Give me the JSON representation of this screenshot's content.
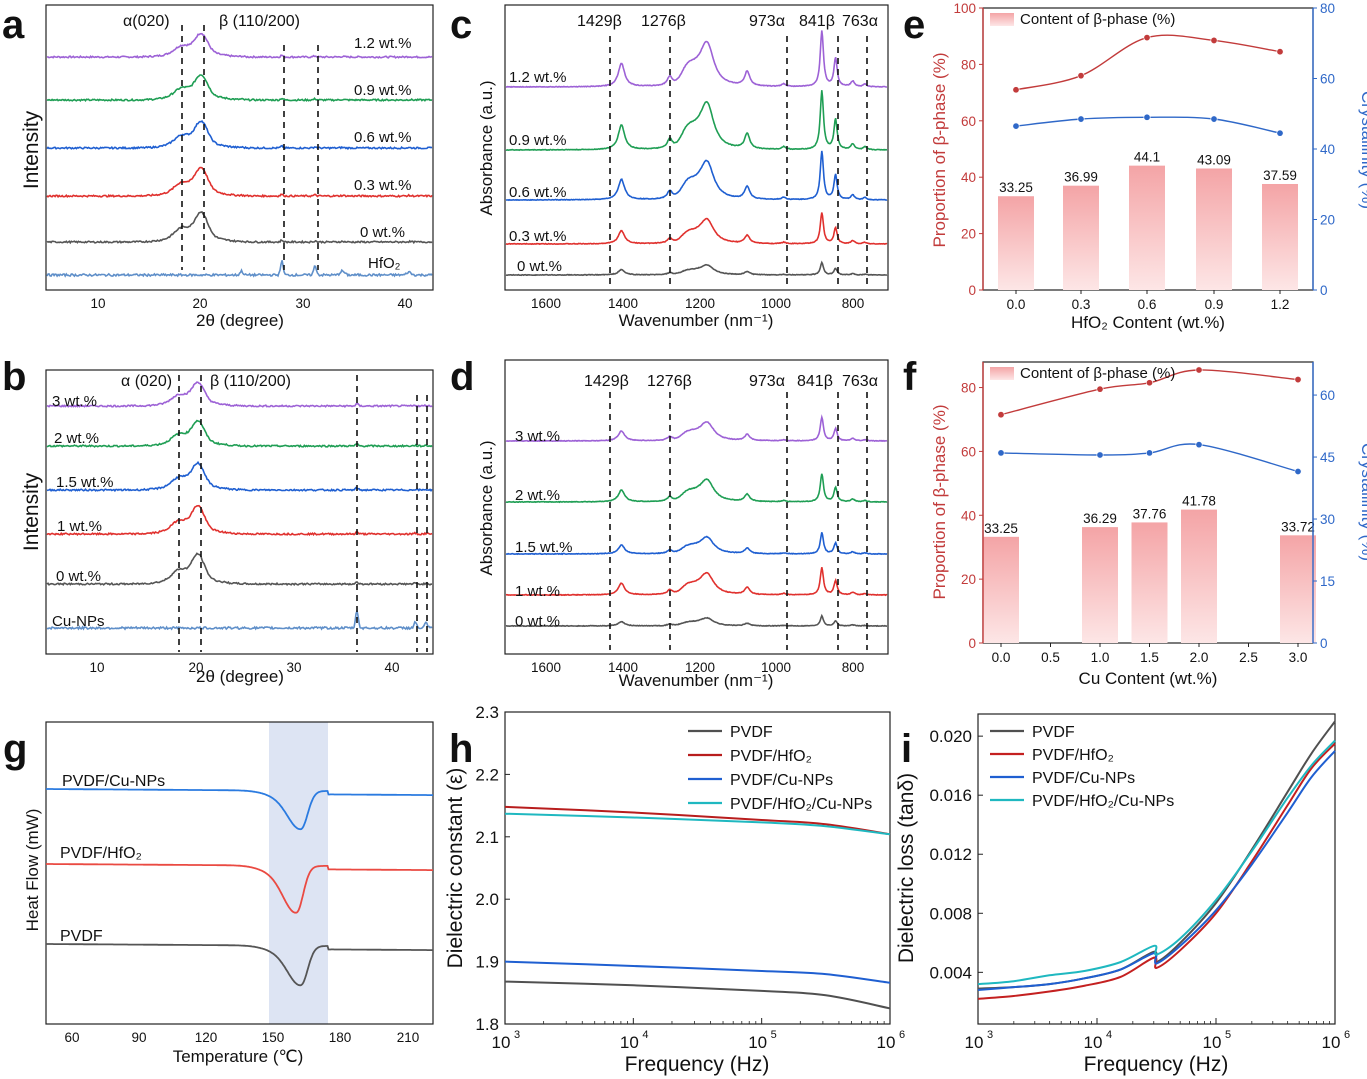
{
  "panels": {
    "a": {
      "label": "a",
      "xlabel": "2θ (degree)",
      "ylabel": "Intensity",
      "xticks": [
        "10",
        "20",
        "30",
        "40"
      ],
      "peaks": {
        "alpha": "α(020)",
        "beta": "β (110/200)"
      },
      "traces": [
        {
          "name": "1.2 wt.%",
          "color": "#9d62d6"
        },
        {
          "name": "0.9 wt.%",
          "color": "#1f9e54"
        },
        {
          "name": "0.6 wt.%",
          "color": "#1f5fd1"
        },
        {
          "name": "0.3 wt.%",
          "color": "#e0312e"
        },
        {
          "name": "0 wt.%",
          "color": "#555555"
        },
        {
          "name": "HfO₂",
          "color": "#5f8fc9"
        }
      ]
    },
    "b": {
      "label": "b",
      "xlabel": "2θ (degree)",
      "ylabel": "Intensity",
      "xticks": [
        "10",
        "20",
        "30",
        "40"
      ],
      "peaks": {
        "alpha": "α (020)",
        "beta": "β (110/200)"
      },
      "traces": [
        {
          "name": "3 wt.%",
          "color": "#9d62d6"
        },
        {
          "name": "2 wt.%",
          "color": "#1f9e54"
        },
        {
          "name": "1.5 wt.%",
          "color": "#1f5fd1"
        },
        {
          "name": "1 wt.%",
          "color": "#e0312e"
        },
        {
          "name": "0 wt.%",
          "color": "#555555"
        },
        {
          "name": "Cu-NPs",
          "color": "#5f8fc9"
        }
      ]
    },
    "c": {
      "label": "c",
      "xlabel": "Wavenumber (nm⁻¹)",
      "ylabel": "Absorbance (a.u.)",
      "xticks": [
        "1600",
        "1400",
        "1200",
        "1000",
        "800"
      ],
      "bands": [
        "1429β",
        "1276β",
        "973α",
        "841β",
        "763α"
      ],
      "traces": [
        {
          "name": "1.2 wt.%",
          "color": "#9d62d6"
        },
        {
          "name": "0.9 wt.%",
          "color": "#1f9e54"
        },
        {
          "name": "0.6 wt.%",
          "color": "#1f5fd1"
        },
        {
          "name": "0.3 wt.%",
          "color": "#e0312e"
        },
        {
          "name": "0 wt.%",
          "color": "#555555"
        }
      ]
    },
    "d": {
      "label": "d",
      "xlabel": "Wavenumber (nm⁻¹)",
      "ylabel": "Absorbance (a.u.)",
      "xticks": [
        "1600",
        "1400",
        "1200",
        "1000",
        "800"
      ],
      "bands": [
        "1429β",
        "1276β",
        "973α",
        "841β",
        "763α"
      ],
      "traces": [
        {
          "name": "3 wt.%",
          "color": "#9d62d6"
        },
        {
          "name": "2 wt.%",
          "color": "#1f9e54"
        },
        {
          "name": "1.5 wt.%",
          "color": "#1f5fd1"
        },
        {
          "name": "1 wt.%",
          "color": "#e0312e"
        },
        {
          "name": "0 wt.%",
          "color": "#555555"
        }
      ]
    },
    "g": {
      "label": "g",
      "xlabel": "Temperature (℃)",
      "ylabel": "Heat Flow (mW)",
      "xticks": [
        "60",
        "90",
        "120",
        "150",
        "180",
        "210"
      ],
      "traces": [
        {
          "name": "PVDF/Cu-NPs",
          "color": "#2b7be0"
        },
        {
          "name": "PVDF/HfO₂",
          "color": "#ea4a42"
        },
        {
          "name": "PVDF",
          "color": "#555555"
        }
      ]
    }
  },
  "chart_data": [
    {
      "type": "bar",
      "id": "e",
      "label": "e",
      "categories": [
        "0.0",
        "0.3",
        "0.6",
        "0.9",
        "1.2"
      ],
      "values": [
        33.25,
        36.99,
        44.1,
        43.09,
        37.59
      ],
      "value_labels": [
        "33.25",
        "36.99",
        "44.1",
        "43.09",
        "37.59"
      ],
      "legend": "Content of β-phase (%)",
      "xlabel": "HfO₂ Content (wt.%)",
      "ylabel": "Proportion of β-phase (%)",
      "ylim": [
        0,
        100
      ],
      "yticks": [
        "0",
        "20",
        "40",
        "60",
        "80",
        "100"
      ],
      "y2label": "Crystallinity (%)",
      "y2lim": [
        0,
        80
      ],
      "y2ticks": [
        "0",
        "20",
        "40",
        "60",
        "80"
      ],
      "series": [
        {
          "name": "Proportion of β-phase (%)",
          "axis": "left",
          "color": "#c23b3b",
          "values": [
            71,
            76,
            89.5,
            88.5,
            84.5
          ]
        },
        {
          "name": "Crystallinity (%)",
          "axis": "right",
          "color": "#2f68c8",
          "values": [
            46.5,
            48.5,
            49,
            48.5,
            44.5
          ]
        }
      ]
    },
    {
      "type": "bar",
      "id": "f",
      "label": "f",
      "x": [
        0,
        1,
        1.5,
        2,
        3
      ],
      "categories": [
        "0.0",
        "1.0",
        "1.5",
        "2.0",
        "3.0"
      ],
      "values": [
        33.25,
        36.29,
        37.76,
        41.78,
        33.72
      ],
      "value_labels": [
        "33.25",
        "36.29",
        "37.76",
        "41.78",
        "33.72"
      ],
      "legend": "Content of β-phase (%)",
      "xlabel": "Cu Content (wt.%)",
      "xticks": [
        "0.0",
        "0.5",
        "1.0",
        "1.5",
        "2.0",
        "2.5",
        "3.0"
      ],
      "ylabel": "Proportion of β-phase (%)",
      "ylim": [
        0,
        88
      ],
      "yticks": [
        "0",
        "20",
        "40",
        "60",
        "80"
      ],
      "y2label": "Crystallinity (%)",
      "y2lim": [
        0,
        68
      ],
      "y2ticks": [
        "0",
        "15",
        "30",
        "45",
        "60"
      ],
      "series": [
        {
          "name": "Proportion of β-phase (%)",
          "axis": "left",
          "color": "#c23b3b",
          "values": [
            71.5,
            79.5,
            81.5,
            85.5,
            82.5
          ]
        },
        {
          "name": "Crystallinity (%)",
          "axis": "right",
          "color": "#2f68c8",
          "values": [
            46,
            45.5,
            46,
            48,
            41.5
          ]
        }
      ]
    },
    {
      "type": "line",
      "id": "h",
      "label": "h",
      "xlabel": "Frequency (Hz)",
      "ylabel": "Dielectric constant (ε)",
      "xscale": "log",
      "xlim": [
        1000,
        1000000
      ],
      "ylim": [
        1.8,
        2.3
      ],
      "xticks": [
        "10",
        "10",
        "10",
        "10"
      ],
      "xtick_exp": [
        "3",
        "4",
        "5",
        "6"
      ],
      "yticks": [
        "1.8",
        "1.9",
        "2.0",
        "2.1",
        "2.2",
        "2.3"
      ],
      "series": [
        {
          "name": "PVDF",
          "color": "#505050",
          "x": [
            3,
            4,
            5,
            5.5,
            6
          ],
          "y": [
            1.868,
            1.862,
            1.853,
            1.846,
            1.825
          ]
        },
        {
          "name": "PVDF/HfO₂",
          "color": "#b81d1d",
          "x": [
            3,
            4,
            5,
            5.5,
            6
          ],
          "y": [
            2.148,
            2.139,
            2.127,
            2.12,
            2.104
          ]
        },
        {
          "name": "PVDF/Cu-NPs",
          "color": "#1f5fd1",
          "x": [
            3,
            4,
            5,
            5.5,
            6
          ],
          "y": [
            1.9,
            1.893,
            1.885,
            1.88,
            1.866
          ]
        },
        {
          "name": "PVDF/HfO₂/Cu-NPs",
          "color": "#1fb8c0",
          "x": [
            3,
            4,
            5,
            5.5,
            6
          ],
          "y": [
            2.137,
            2.131,
            2.123,
            2.117,
            2.104
          ]
        }
      ]
    },
    {
      "type": "line",
      "id": "i",
      "label": "i",
      "xlabel": "Frequency (Hz)",
      "ylabel": "Dielectric loss (tanδ)",
      "xscale": "log",
      "xlim": [
        1000,
        1000000
      ],
      "ylim": [
        0.0005,
        0.0215
      ],
      "xticks": [
        "10",
        "10",
        "10",
        "10"
      ],
      "xtick_exp": [
        "3",
        "4",
        "5",
        "6"
      ],
      "yticks": [
        "0.004",
        "0.008",
        "0.012",
        "0.016",
        "0.020"
      ],
      "series": [
        {
          "name": "PVDF",
          "color": "#505050",
          "x": [
            3,
            3.3,
            3.6,
            3.9,
            4.2,
            4.48,
            4.5,
            4.7,
            5,
            5.3,
            5.6,
            5.8,
            6
          ],
          "y": [
            0.0029,
            0.003,
            0.0032,
            0.0036,
            0.0042,
            0.0054,
            0.0047,
            0.006,
            0.0087,
            0.0123,
            0.0162,
            0.0188,
            0.021
          ]
        },
        {
          "name": "PVDF/HfO₂",
          "color": "#c42020",
          "x": [
            3,
            3.3,
            3.6,
            3.9,
            4.2,
            4.48,
            4.5,
            4.7,
            5,
            5.3,
            5.6,
            5.8,
            6
          ],
          "y": [
            0.0022,
            0.0024,
            0.0027,
            0.0031,
            0.0037,
            0.005,
            0.0043,
            0.0055,
            0.008,
            0.0115,
            0.0153,
            0.0178,
            0.0195
          ]
        },
        {
          "name": "PVDF/Cu-NPs",
          "color": "#1f5fd1",
          "x": [
            3,
            3.3,
            3.6,
            3.9,
            4.2,
            4.48,
            4.5,
            4.7,
            5,
            5.3,
            5.6,
            5.8,
            6
          ],
          "y": [
            0.0028,
            0.003,
            0.0032,
            0.0036,
            0.0042,
            0.0053,
            0.0046,
            0.0058,
            0.0082,
            0.0113,
            0.0148,
            0.0172,
            0.019
          ]
        },
        {
          "name": "PVDF/HfO₂/Cu-NPs",
          "color": "#1fb8c0",
          "x": [
            3,
            3.3,
            3.6,
            3.9,
            4.2,
            4.48,
            4.5,
            4.7,
            5,
            5.3,
            5.6,
            5.8,
            6
          ],
          "y": [
            0.0032,
            0.0034,
            0.0038,
            0.0041,
            0.0047,
            0.0058,
            0.0052,
            0.0063,
            0.0089,
            0.0122,
            0.0158,
            0.018,
            0.0197
          ]
        }
      ]
    }
  ]
}
